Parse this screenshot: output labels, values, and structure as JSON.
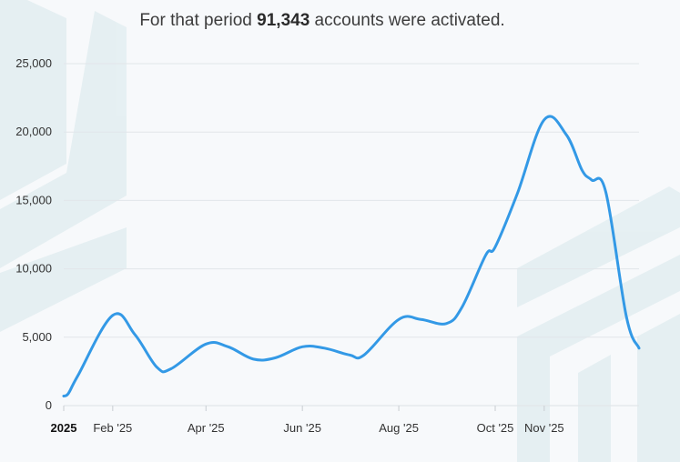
{
  "headline": {
    "prefix": "For that period ",
    "total": "91,343",
    "suffix": " accounts were activated."
  },
  "colors": {
    "line": "#3399e6",
    "grid": "#e2e6ea",
    "decor": "#e3eef1"
  },
  "chart_data": {
    "type": "line",
    "title": "",
    "xlabel": "",
    "ylabel": "",
    "ylim": [
      0,
      25000
    ],
    "y_ticks": [
      0,
      5000,
      10000,
      15000,
      20000,
      25000
    ],
    "y_tick_labels": [
      "0",
      "5,000",
      "10,000",
      "15,000",
      "20,000",
      "25,000"
    ],
    "xlim": [
      "2025-01-01",
      "2025-12-31"
    ],
    "x_ticks": [
      {
        "date": "2025-01-01",
        "label": "2025",
        "bold": true
      },
      {
        "date": "2025-02-01",
        "label": "Feb '25",
        "bold": false
      },
      {
        "date": "2025-04-01",
        "label": "Apr '25",
        "bold": false
      },
      {
        "date": "2025-06-01",
        "label": "Jun '25",
        "bold": false
      },
      {
        "date": "2025-08-01",
        "label": "Aug '25",
        "bold": false
      },
      {
        "date": "2025-10-01",
        "label": "Oct '25",
        "bold": false
      },
      {
        "date": "2025-11-01",
        "label": "Nov '25",
        "bold": false
      }
    ],
    "grid": true,
    "legend": "none",
    "series": [
      {
        "x": [
          "2025-01-01",
          "2025-01-04",
          "2025-01-10",
          "2025-02-01",
          "2025-02-15",
          "2025-03-01",
          "2025-03-10",
          "2025-04-01",
          "2025-04-15",
          "2025-05-01",
          "2025-05-15",
          "2025-06-01",
          "2025-06-15",
          "2025-07-01",
          "2025-07-10",
          "2025-08-01",
          "2025-08-15",
          "2025-08-31",
          "2025-09-10",
          "2025-09-25",
          "2025-10-01",
          "2025-10-15",
          "2025-11-01",
          "2025-11-15",
          "2025-11-25",
          "2025-12-01",
          "2025-12-10",
          "2025-12-23",
          "2025-12-31"
        ],
        "values": [
          700,
          900,
          2200,
          6600,
          5200,
          2800,
          2700,
          4500,
          4300,
          3400,
          3500,
          4300,
          4200,
          3700,
          3700,
          6300,
          6300,
          6000,
          7200,
          11000,
          11600,
          15500,
          20900,
          19800,
          17200,
          16500,
          15600,
          6500,
          4200
        ]
      }
    ]
  }
}
